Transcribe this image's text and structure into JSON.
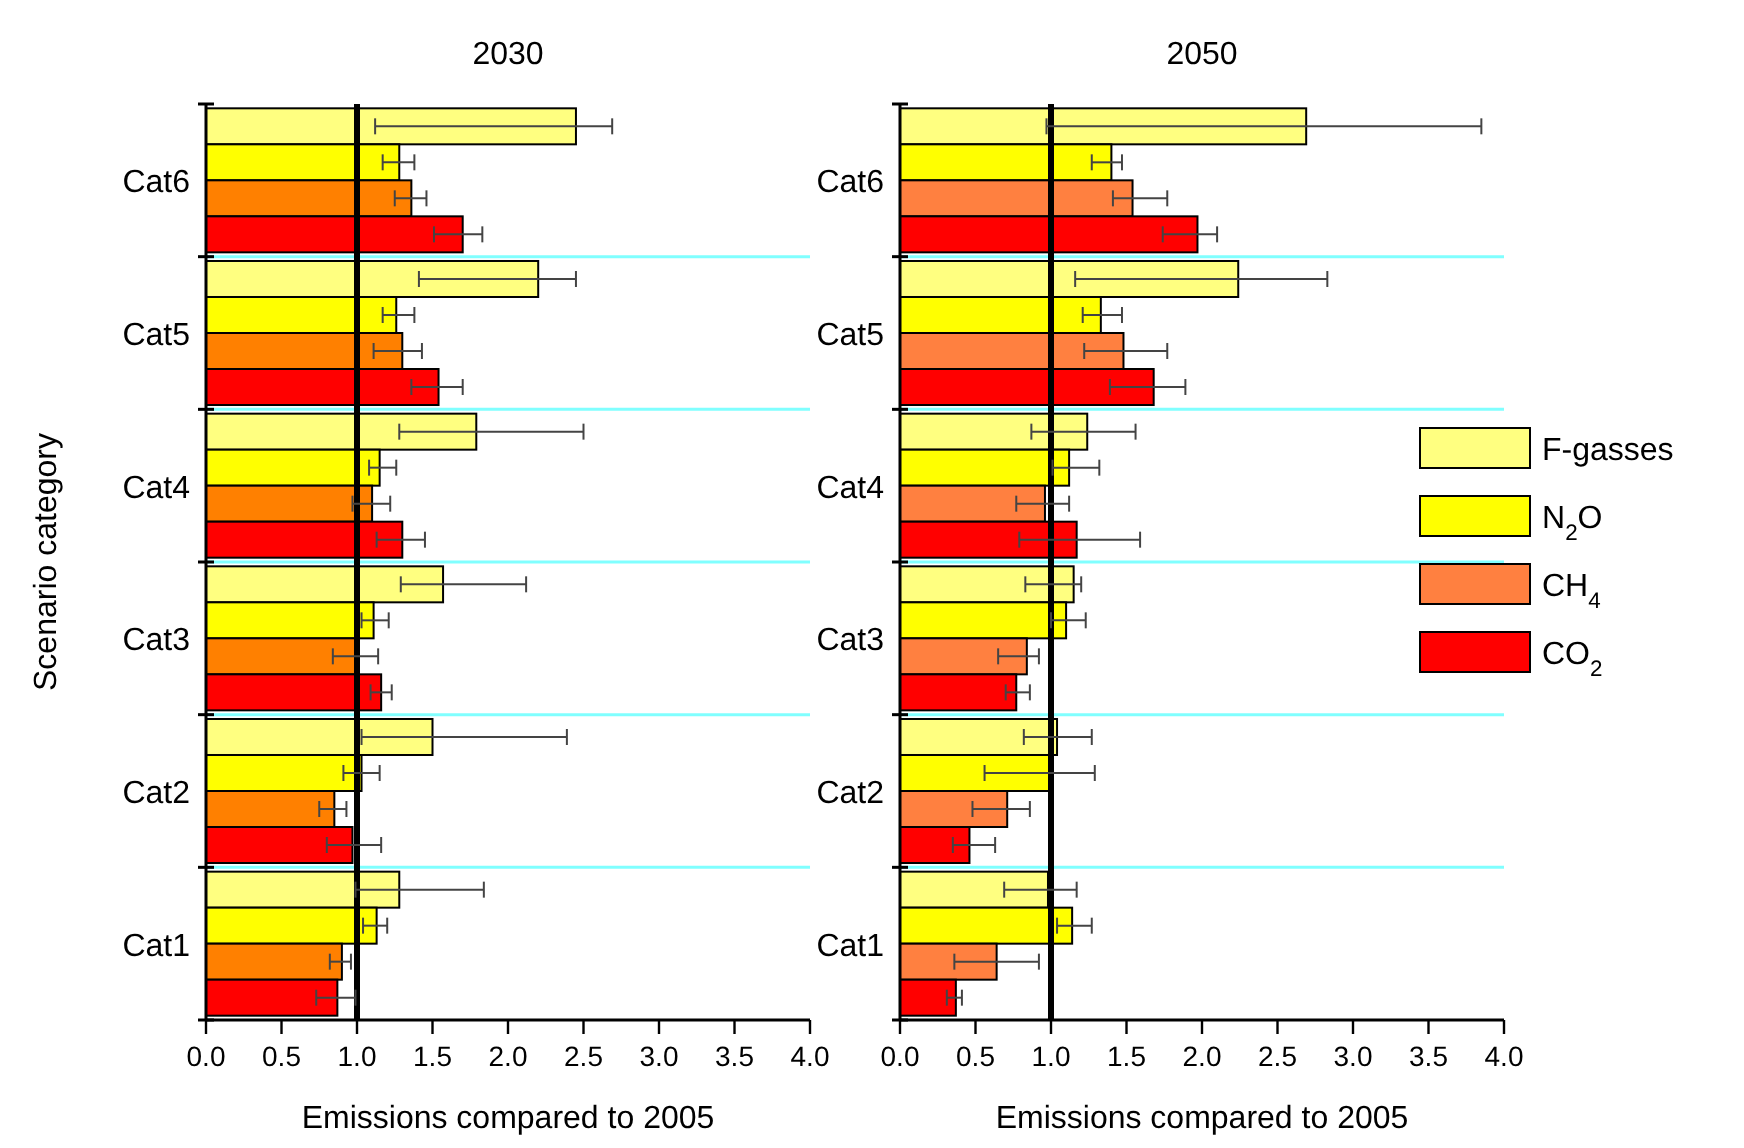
{
  "chart_data": [
    {
      "type": "bar",
      "orientation": "horizontal",
      "title": "2030",
      "xlabel": "Emissions compared to 2005",
      "ylabel": "Scenario category",
      "categories": [
        "Cat6",
        "Cat5",
        "Cat4",
        "Cat3",
        "Cat2",
        "Cat1"
      ],
      "series": [
        {
          "color": "#ffff80",
          "values": [
            2.45,
            2.2,
            1.79,
            1.57,
            1.5,
            1.28
          ],
          "errors": [
            [
              1.12,
              2.69
            ],
            [
              1.41,
              2.45
            ],
            [
              1.28,
              2.5
            ],
            [
              1.29,
              2.12
            ],
            [
              1.03,
              2.39
            ],
            [
              0.99,
              1.84
            ]
          ]
        },
        {
          "color": "#ffff00",
          "values": [
            1.28,
            1.26,
            1.15,
            1.11,
            1.03,
            1.13
          ],
          "errors": [
            [
              1.17,
              1.38
            ],
            [
              1.17,
              1.38
            ],
            [
              1.08,
              1.26
            ],
            [
              1.03,
              1.21
            ],
            [
              0.91,
              1.15
            ],
            [
              1.04,
              1.2
            ]
          ]
        },
        {
          "color": "#ff8000",
          "values": [
            1.36,
            1.3,
            1.1,
            1.0,
            0.85,
            0.9
          ],
          "errors": [
            [
              1.25,
              1.46
            ],
            [
              1.11,
              1.43
            ],
            [
              0.97,
              1.22
            ],
            [
              0.84,
              1.14
            ],
            [
              0.75,
              0.93
            ],
            [
              0.82,
              0.96
            ]
          ]
        },
        {
          "color": "#ff0000",
          "values": [
            1.7,
            1.54,
            1.3,
            1.16,
            0.97,
            0.87
          ],
          "errors": [
            [
              1.51,
              1.83
            ],
            [
              1.36,
              1.7
            ],
            [
              1.13,
              1.45
            ],
            [
              1.09,
              1.23
            ],
            [
              0.8,
              1.16
            ],
            [
              0.73,
              0.99
            ]
          ]
        }
      ],
      "xlim": [
        0,
        4
      ],
      "xticks": [
        {
          "value": 0,
          "label": "0.0"
        },
        0.5,
        {
          "value": 1,
          "label": "1.0"
        },
        1.5,
        {
          "value": 2,
          "label": "2.0"
        },
        2.5,
        {
          "value": 3,
          "label": "3.0"
        },
        3.5,
        {
          "value": 4,
          "label": "4.0"
        }
      ],
      "ref_lines": [
        {
          "axis": "x",
          "value": 1,
          "color": "#000000"
        }
      ],
      "grid": "y"
    },
    {
      "type": "bar",
      "orientation": "horizontal",
      "title": "2050",
      "xlabel": "Emissions compared to 2005",
      "categories": [
        "Cat6",
        "Cat5",
        "Cat4",
        "Cat3",
        "Cat2",
        "Cat1"
      ],
      "series": [
        {
          "name": "F-gasses",
          "color": "#ffff80",
          "values": [
            2.69,
            2.24,
            1.24,
            1.15,
            1.04,
            0.98
          ],
          "errors": [
            [
              0.97,
              3.85
            ],
            [
              1.16,
              2.83
            ],
            [
              0.87,
              1.56
            ],
            [
              0.83,
              1.2
            ],
            [
              0.82,
              1.27
            ],
            [
              0.69,
              1.17
            ]
          ]
        },
        {
          "name": "N$_{2}$O",
          "color": "#ffff00",
          "values": [
            1.4,
            1.33,
            1.12,
            1.1,
            0.99,
            1.14
          ],
          "errors": [
            [
              1.27,
              1.47
            ],
            [
              1.21,
              1.47
            ],
            [
              1.01,
              1.32
            ],
            [
              1.0,
              1.23
            ],
            [
              0.56,
              1.29
            ],
            [
              1.04,
              1.27
            ]
          ]
        },
        {
          "name": "CH$_{4}$",
          "color": "#ff8040",
          "values": [
            1.54,
            1.48,
            0.96,
            0.84,
            0.71,
            0.64
          ],
          "errors": [
            [
              1.41,
              1.77
            ],
            [
              1.22,
              1.77
            ],
            [
              0.77,
              1.12
            ],
            [
              0.65,
              0.92
            ],
            [
              0.48,
              0.86
            ],
            [
              0.36,
              0.92
            ]
          ]
        },
        {
          "name": "CO$_{2}$",
          "color": "#ff0000",
          "values": [
            1.97,
            1.68,
            1.17,
            0.77,
            0.46,
            0.37
          ],
          "errors": [
            [
              1.74,
              2.1
            ],
            [
              1.39,
              1.89
            ],
            [
              0.79,
              1.59
            ],
            [
              0.7,
              0.86
            ],
            [
              0.35,
              0.63
            ],
            [
              0.31,
              0.41
            ]
          ]
        }
      ],
      "xlim": [
        0,
        4
      ],
      "xticks": [
        {
          "value": 0,
          "label": "0.0"
        },
        0.5,
        {
          "value": 1,
          "label": "1.0"
        },
        1.5,
        {
          "value": 2,
          "label": "2.0"
        },
        2.5,
        {
          "value": 3,
          "label": "3.0"
        },
        3.5,
        {
          "value": 4,
          "label": "4.0"
        }
      ],
      "ref_lines": [
        {
          "axis": "x",
          "value": 1,
          "color": "#000000"
        }
      ],
      "grid": "y",
      "legend": "right"
    }
  ]
}
